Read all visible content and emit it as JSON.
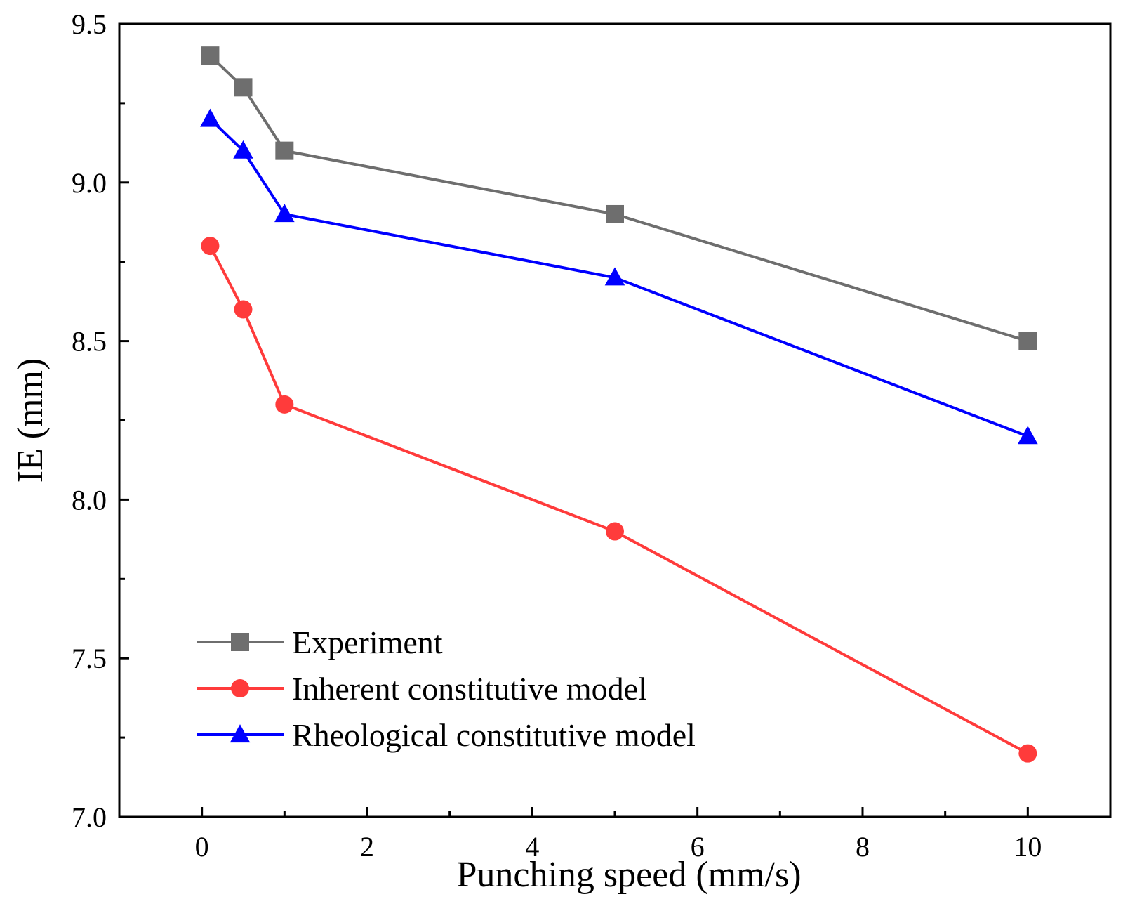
{
  "chart_data": {
    "type": "line",
    "title": "",
    "xlabel": "Punching speed (mm/s)",
    "ylabel": "IE (mm)",
    "xlim": [
      -1,
      11
    ],
    "ylim": [
      7.0,
      9.5
    ],
    "x_ticks": [
      0,
      2,
      4,
      6,
      8,
      10
    ],
    "x_tick_labels": [
      "0",
      "2",
      "4",
      "6",
      "8",
      "10"
    ],
    "x_minor_ticks": [
      1,
      3,
      5,
      7,
      9
    ],
    "y_ticks": [
      7.0,
      7.5,
      8.0,
      8.5,
      9.0,
      9.5
    ],
    "y_tick_labels": [
      "7.0",
      "7.5",
      "8.0",
      "8.5",
      "9.0",
      "9.5"
    ],
    "y_minor_ticks": [
      7.25,
      7.75,
      8.25,
      8.75,
      9.25
    ],
    "grid": false,
    "legend_position": "bottom-left",
    "x": [
      0.1,
      0.5,
      1,
      5,
      10
    ],
    "series": [
      {
        "name": "Experiment",
        "marker": "square",
        "color": "#6e6e6e",
        "values": [
          9.4,
          9.3,
          9.1,
          8.9,
          8.5
        ]
      },
      {
        "name": "Inherent constitutive model",
        "marker": "circle",
        "color": "#ff3b3b",
        "values": [
          8.8,
          8.6,
          8.3,
          7.9,
          7.2
        ]
      },
      {
        "name": "Rheological constitutive model",
        "marker": "triangle",
        "color": "#0000ff",
        "values": [
          9.2,
          9.1,
          8.9,
          8.7,
          8.2
        ]
      }
    ]
  }
}
